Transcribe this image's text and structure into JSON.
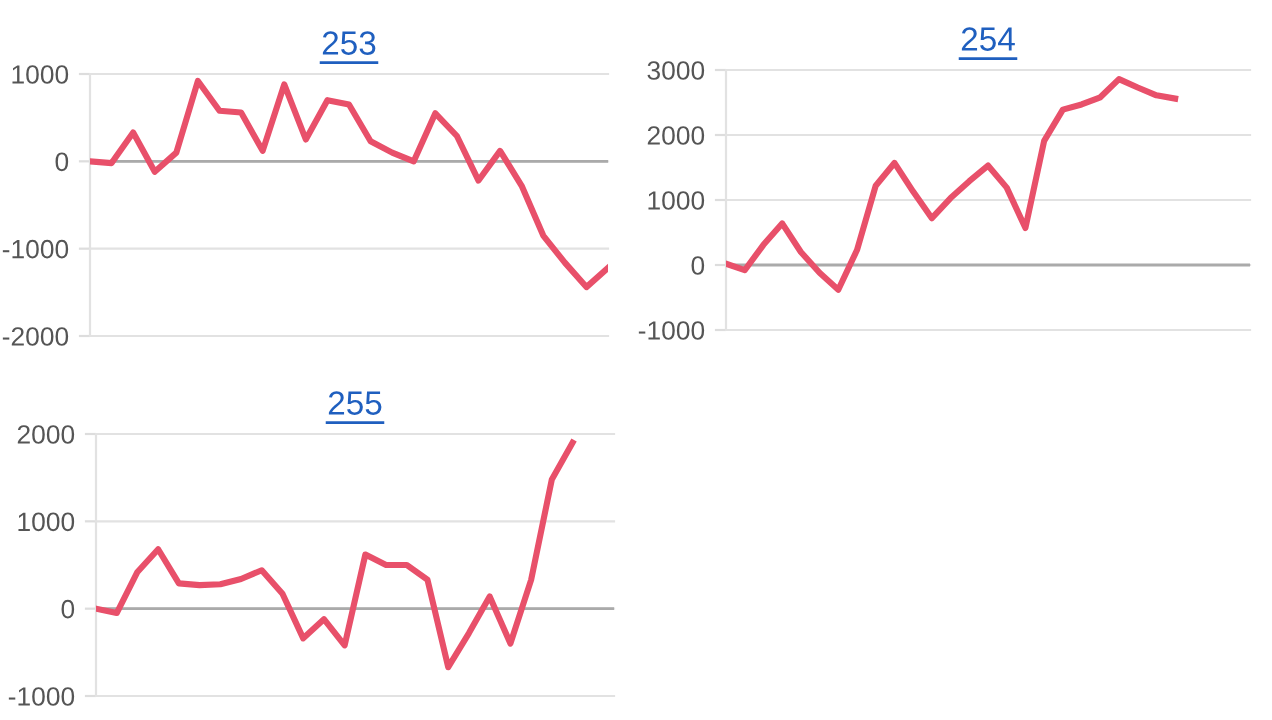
{
  "chart_data": [
    {
      "type": "line",
      "title": "253",
      "categories": [
        null,
        null,
        null,
        null,
        null,
        null,
        null,
        null,
        null,
        null,
        null,
        null,
        null,
        null,
        null,
        null,
        null,
        null,
        null,
        null,
        null,
        null,
        null,
        null,
        null
      ],
      "series": [
        {
          "color": "#e8506a",
          "values": [
            0,
            -20,
            330,
            -120,
            100,
            920,
            580,
            560,
            120,
            880,
            250,
            700,
            650,
            230,
            100,
            0,
            550,
            290,
            -220,
            120,
            -280,
            -850,
            -1160,
            -1440,
            -1220
          ]
        }
      ],
      "ylim": [
        -2000,
        1000
      ],
      "yticks": [
        -2000,
        -1000,
        0,
        1000
      ],
      "ref_lines": [
        {
          "axis": "y",
          "value": 0,
          "color": "#aaaaaa"
        }
      ],
      "grid": "y",
      "tick_labels": "y",
      "marker": "none",
      "line_style": "solid"
    },
    {
      "type": "line",
      "title": "254",
      "categories": [
        null,
        null,
        null,
        null,
        null,
        null,
        null,
        null,
        null,
        null,
        null,
        null,
        null,
        null,
        null,
        null,
        null,
        null,
        null,
        null,
        null,
        null,
        null,
        null,
        null,
        null,
        null,
        null,
        null
      ],
      "series": [
        {
          "color": "#e8506a",
          "values": [
            20,
            -80,
            310,
            640,
            200,
            -120,
            -380,
            230,
            1220,
            1570,
            1130,
            720,
            1030,
            1290,
            1530,
            1190,
            570,
            1910,
            2390,
            2470,
            2580,
            2860,
            2730,
            2610,
            2560,
            null,
            null,
            null,
            null
          ]
        }
      ],
      "ylim": [
        -1000,
        3000
      ],
      "yticks": [
        -1000,
        0,
        1000,
        2000,
        3000
      ],
      "ref_lines": [
        {
          "axis": "y",
          "value": 0,
          "color": "#aaaaaa"
        }
      ],
      "grid": "y",
      "tick_labels": "y",
      "marker": "none",
      "line_style": "solid"
    },
    {
      "type": "line",
      "title": "255",
      "categories": [
        null,
        null,
        null,
        null,
        null,
        null,
        null,
        null,
        null,
        null,
        null,
        null,
        null,
        null,
        null,
        null,
        null,
        null,
        null,
        null,
        null,
        null,
        null,
        null,
        null,
        null
      ],
      "series": [
        {
          "color": "#e8506a",
          "values": [
            0,
            -50,
            420,
            680,
            290,
            270,
            280,
            340,
            440,
            170,
            -340,
            -120,
            -420,
            620,
            500,
            500,
            330,
            -670,
            -280,
            140,
            -400,
            330,
            1480,
            1900,
            null,
            null
          ]
        }
      ],
      "ylim": [
        -1000,
        2000
      ],
      "yticks": [
        -1000,
        0,
        1000,
        2000
      ],
      "ref_lines": [
        {
          "axis": "y",
          "value": 0,
          "color": "#aaaaaa"
        }
      ],
      "grid": "y",
      "tick_labels": "y",
      "marker": "none",
      "line_style": "solid"
    }
  ]
}
